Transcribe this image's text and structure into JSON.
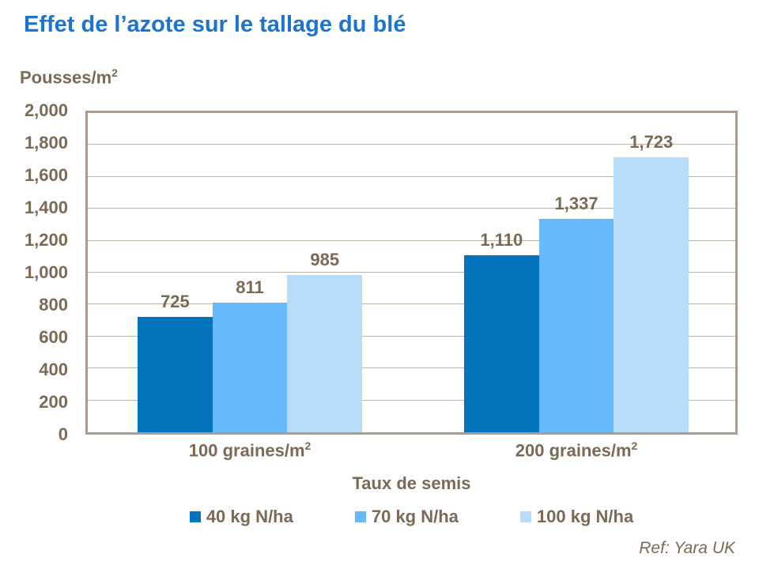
{
  "page": {
    "title": "Effet de l’azote sur le tallage du blé",
    "ref": "Ref: Yara UK"
  },
  "y_axis_title": {
    "base": "Pousses/m",
    "sup": "2"
  },
  "chart_data": {
    "type": "bar",
    "title": "Effet de l’azote sur le tallage du blé",
    "ylabel": "Pousses/m²",
    "xlabel": "Taux de semis",
    "categories": [
      {
        "base": "100 graines/m",
        "sup": "2"
      },
      {
        "base": "200 graines/m",
        "sup": "2"
      }
    ],
    "series": [
      {
        "name": "40 kg N/ha",
        "color": "#0473BE",
        "values": [
          725,
          1110
        ],
        "labels": [
          "725",
          "1,110"
        ]
      },
      {
        "name": "70 kg N/ha",
        "color": "#66B9FA",
        "values": [
          811,
          1337
        ],
        "labels": [
          "811",
          "1,337"
        ]
      },
      {
        "name": "100 kg N/ha",
        "color": "#B7DDFB",
        "values": [
          985,
          1723
        ],
        "labels": [
          "985",
          "1,723"
        ]
      }
    ],
    "ylim": [
      0,
      2000
    ],
    "ytick_step": 200,
    "yticks": [
      "0",
      "200",
      "400",
      "600",
      "800",
      "1,000",
      "1,200",
      "1,400",
      "1,600",
      "1,800",
      "2,000"
    ],
    "grid": true,
    "legend_position": "bottom"
  },
  "colors": {
    "title_blue": "#1B74D0",
    "text_taupe": "#7A6A55",
    "plot_border": "#A99D8F",
    "gridline": "#BCB2A6",
    "background": "#FFFFFF"
  }
}
